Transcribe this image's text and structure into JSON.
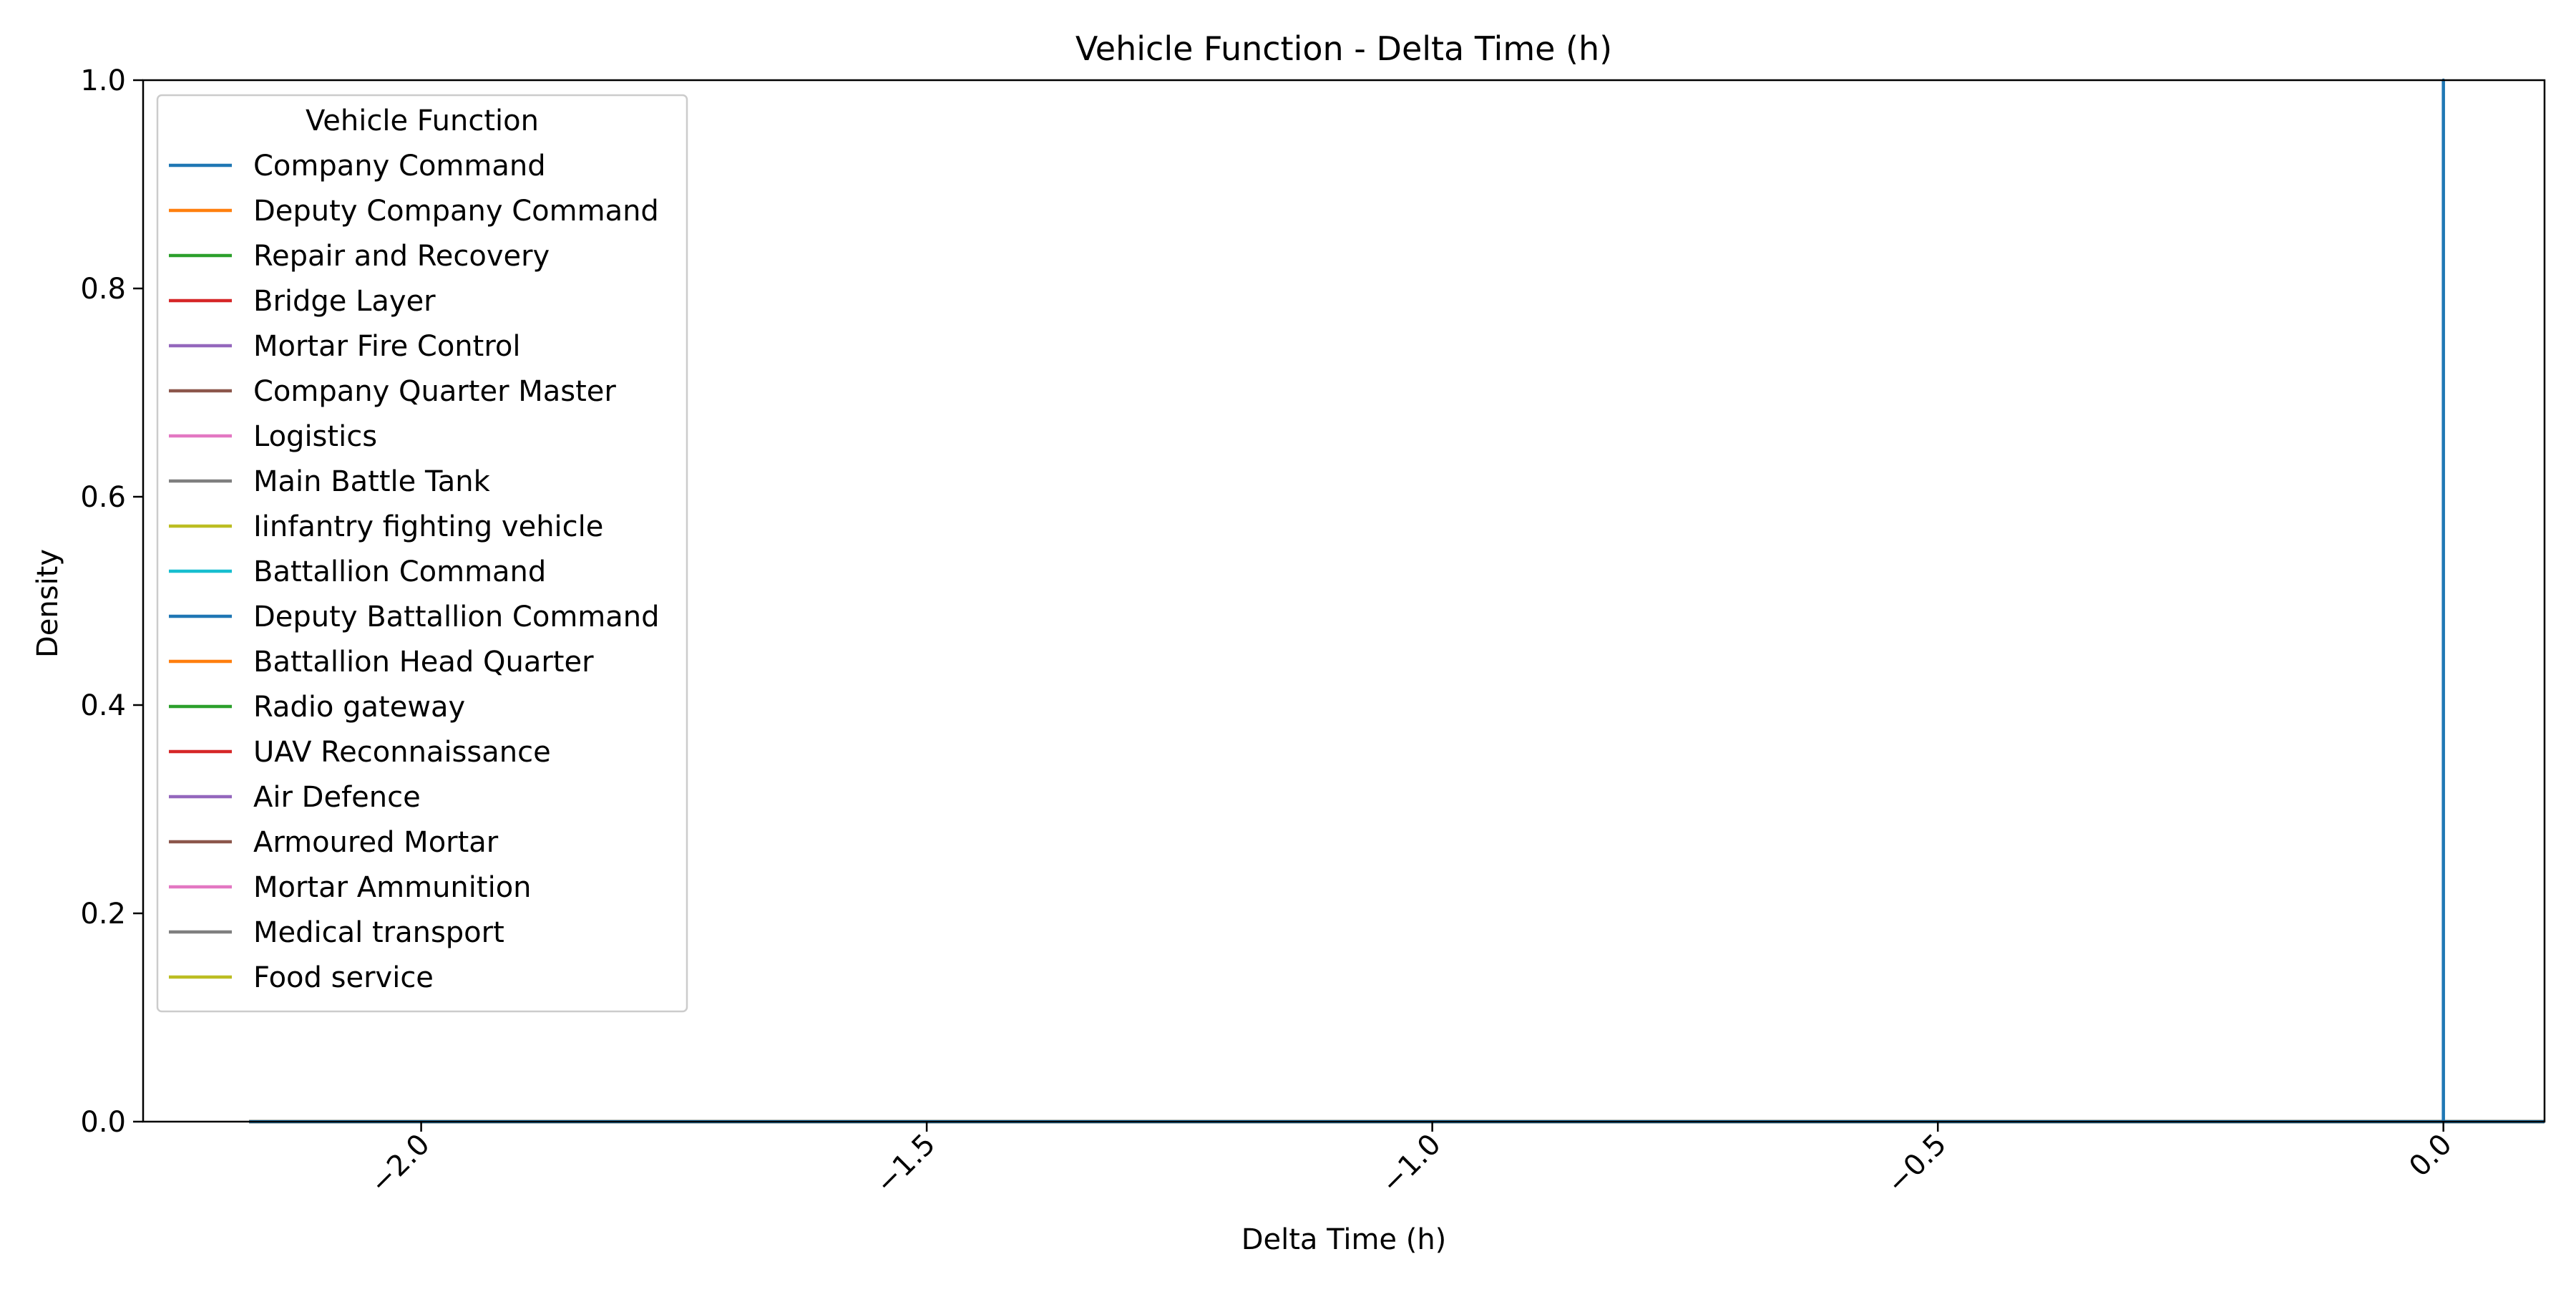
{
  "chart_data": {
    "type": "line",
    "title": "Vehicle Function - Delta Time (h)",
    "xlabel": "Delta Time (h)",
    "ylabel": "Density",
    "xlim": [
      -2.275,
      0.1
    ],
    "ylim": [
      0,
      1
    ],
    "x_ticks": [
      -2.0,
      -1.5,
      -1.0,
      -0.5,
      0.0
    ],
    "x_tick_labels": [
      "−2.0",
      "−1.5",
      "−1.0",
      "−0.5",
      "0.0"
    ],
    "x_tick_rotation_deg": 45,
    "y_ticks": [
      0.0,
      0.2,
      0.4,
      0.6,
      0.8,
      1.0
    ],
    "y_tick_labels": [
      "0.0",
      "0.2",
      "0.4",
      "0.6",
      "0.8",
      "1.0"
    ],
    "grid": false,
    "legend": {
      "title": "Vehicle Function",
      "position": "upper-left"
    },
    "series": [
      {
        "name": "Company Command",
        "color": "#1f77b4",
        "x": [
          -2.17,
          0.0,
          0.0,
          0.0,
          0.1
        ],
        "y": [
          0,
          0,
          1.0,
          0,
          0
        ]
      },
      {
        "name": "Deputy Company Command",
        "color": "#ff7f0e",
        "x": [
          -2.17,
          0.1
        ],
        "y": [
          0,
          0
        ]
      },
      {
        "name": "Repair and Recovery",
        "color": "#2ca02c",
        "x": [
          -2.17,
          0.1
        ],
        "y": [
          0,
          0
        ]
      },
      {
        "name": "Bridge Layer",
        "color": "#d62728",
        "x": [
          -2.17,
          0.1
        ],
        "y": [
          0,
          0
        ]
      },
      {
        "name": "Mortar Fire Control",
        "color": "#9467bd",
        "x": [
          -2.17,
          0.1
        ],
        "y": [
          0,
          0
        ]
      },
      {
        "name": "Company Quarter Master",
        "color": "#8c564b",
        "x": [
          -2.17,
          0.1
        ],
        "y": [
          0,
          0
        ]
      },
      {
        "name": "Logistics",
        "color": "#e377c2",
        "x": [
          -2.17,
          0.1
        ],
        "y": [
          0,
          0
        ]
      },
      {
        "name": "Main Battle Tank",
        "color": "#7f7f7f",
        "x": [
          -2.17,
          0.1
        ],
        "y": [
          0,
          0
        ]
      },
      {
        "name": "Iinfantry fighting vehicle",
        "color": "#bcbd22",
        "x": [
          -2.17,
          0.1
        ],
        "y": [
          0,
          0
        ]
      },
      {
        "name": "Battallion Command",
        "color": "#17becf",
        "x": [
          -2.17,
          0.1
        ],
        "y": [
          0,
          0
        ]
      },
      {
        "name": "Deputy Battallion Command",
        "color": "#1f77b4",
        "x": [
          -2.17,
          0.1
        ],
        "y": [
          0,
          0
        ]
      },
      {
        "name": "Battallion Head Quarter",
        "color": "#ff7f0e",
        "x": [
          -2.17,
          0.1
        ],
        "y": [
          0,
          0
        ]
      },
      {
        "name": "Radio gateway",
        "color": "#2ca02c",
        "x": [
          -2.17,
          0.1
        ],
        "y": [
          0,
          0
        ]
      },
      {
        "name": "UAV Reconnaissance",
        "color": "#d62728",
        "x": [
          -2.17,
          0.1
        ],
        "y": [
          0,
          0
        ]
      },
      {
        "name": "Air Defence",
        "color": "#9467bd",
        "x": [
          -2.17,
          0.1
        ],
        "y": [
          0,
          0
        ]
      },
      {
        "name": "Armoured Mortar",
        "color": "#8c564b",
        "x": [
          -2.17,
          0.1
        ],
        "y": [
          0,
          0
        ]
      },
      {
        "name": "Mortar Ammunition",
        "color": "#e377c2",
        "x": [
          -2.17,
          0.1
        ],
        "y": [
          0,
          0
        ]
      },
      {
        "name": "Medical transport",
        "color": "#7f7f7f",
        "x": [
          -2.17,
          0.1
        ],
        "y": [
          0,
          0
        ]
      },
      {
        "name": "Food service",
        "color": "#bcbd22",
        "x": [
          -2.17,
          0.1
        ],
        "y": [
          0,
          0
        ]
      }
    ]
  }
}
